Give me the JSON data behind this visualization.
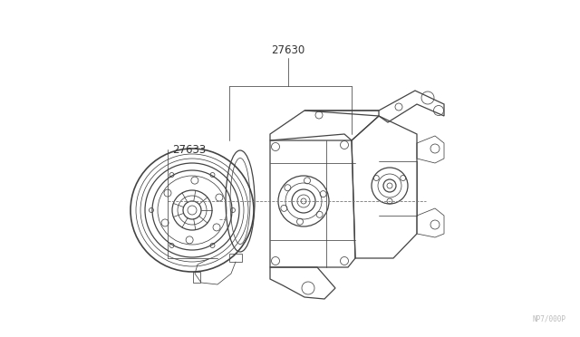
{
  "background_color": "#ffffff",
  "line_color": "#444444",
  "label_color": "#333333",
  "part_label_27630": "27630",
  "part_label_27633": "27633",
  "watermark": "NP7/000P",
  "fig_width": 6.4,
  "fig_height": 3.72,
  "dpi": 100,
  "lw_main": 0.9,
  "lw_thin": 0.55,
  "lw_thick": 1.2
}
